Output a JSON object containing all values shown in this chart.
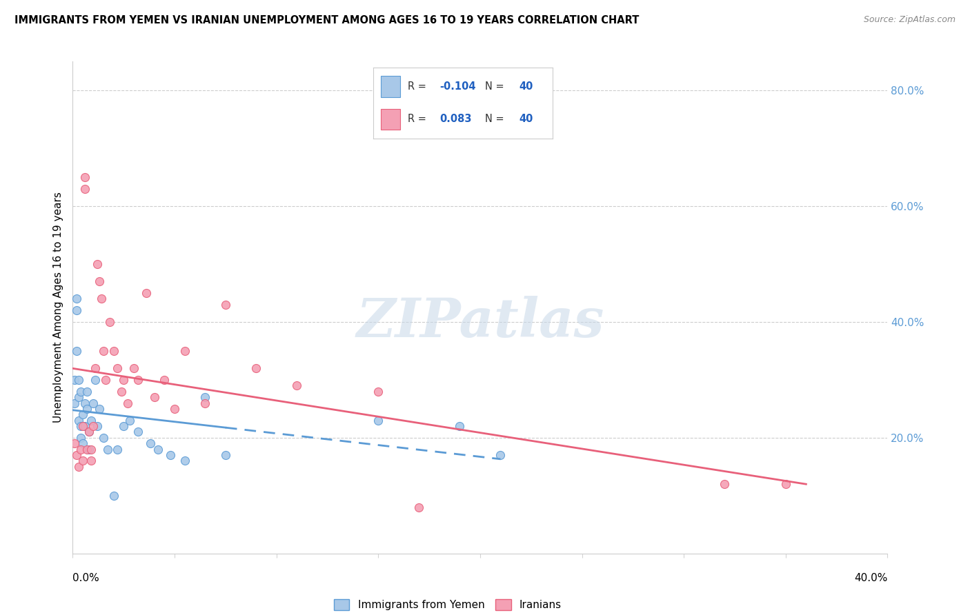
{
  "title": "IMMIGRANTS FROM YEMEN VS IRANIAN UNEMPLOYMENT AMONG AGES 16 TO 19 YEARS CORRELATION CHART",
  "source": "Source: ZipAtlas.com",
  "ylabel": "Unemployment Among Ages 16 to 19 years",
  "legend_r_yemen": "-0.104",
  "legend_n_yemen": "40",
  "legend_r_iran": "0.083",
  "legend_n_iran": "40",
  "color_yemen": "#a8c8e8",
  "color_iran": "#f4a0b4",
  "color_line_yemen": "#5b9bd5",
  "color_line_iran": "#e8607a",
  "watermark": "ZIPatlas",
  "x_min": 0.0,
  "x_max": 0.4,
  "y_min": 0.0,
  "y_max": 0.85,
  "yemen_x": [
    0.001,
    0.001,
    0.002,
    0.002,
    0.002,
    0.003,
    0.003,
    0.003,
    0.004,
    0.004,
    0.004,
    0.005,
    0.005,
    0.006,
    0.006,
    0.007,
    0.007,
    0.008,
    0.008,
    0.009,
    0.01,
    0.011,
    0.012,
    0.013,
    0.015,
    0.017,
    0.02,
    0.022,
    0.025,
    0.028,
    0.032,
    0.038,
    0.042,
    0.048,
    0.055,
    0.065,
    0.075,
    0.15,
    0.19,
    0.21
  ],
  "yemen_y": [
    0.26,
    0.3,
    0.42,
    0.44,
    0.35,
    0.27,
    0.3,
    0.23,
    0.28,
    0.22,
    0.2,
    0.24,
    0.19,
    0.26,
    0.22,
    0.28,
    0.25,
    0.21,
    0.18,
    0.23,
    0.26,
    0.3,
    0.22,
    0.25,
    0.2,
    0.18,
    0.1,
    0.18,
    0.22,
    0.23,
    0.21,
    0.19,
    0.18,
    0.17,
    0.16,
    0.27,
    0.17,
    0.23,
    0.22,
    0.17
  ],
  "iran_x": [
    0.001,
    0.002,
    0.003,
    0.004,
    0.005,
    0.005,
    0.006,
    0.006,
    0.007,
    0.008,
    0.009,
    0.009,
    0.01,
    0.011,
    0.012,
    0.013,
    0.014,
    0.015,
    0.016,
    0.018,
    0.02,
    0.022,
    0.024,
    0.025,
    0.027,
    0.03,
    0.032,
    0.036,
    0.04,
    0.045,
    0.05,
    0.055,
    0.065,
    0.075,
    0.09,
    0.11,
    0.15,
    0.17,
    0.32,
    0.35
  ],
  "iran_y": [
    0.19,
    0.17,
    0.15,
    0.18,
    0.16,
    0.22,
    0.63,
    0.65,
    0.18,
    0.21,
    0.16,
    0.18,
    0.22,
    0.32,
    0.5,
    0.47,
    0.44,
    0.35,
    0.3,
    0.4,
    0.35,
    0.32,
    0.28,
    0.3,
    0.26,
    0.32,
    0.3,
    0.45,
    0.27,
    0.3,
    0.25,
    0.35,
    0.26,
    0.43,
    0.32,
    0.29,
    0.28,
    0.08,
    0.12,
    0.12
  ]
}
